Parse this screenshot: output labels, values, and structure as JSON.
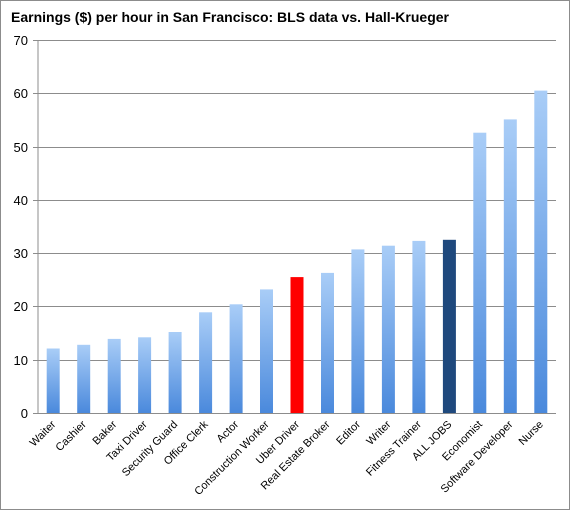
{
  "chart_data": {
    "type": "bar",
    "title": "Earnings ($) per hour in San Francisco: BLS data vs. Hall-Krueger",
    "categories": [
      "Waiter",
      "Cashier",
      "Baker",
      "Taxi Driver",
      "Security Guard",
      "Office Clerk",
      "Actor",
      "Construction Worker",
      "Uber Driver",
      "Real Estate Broker",
      "Editor",
      "Writer",
      "Fitness Trainer",
      "ALL JOBS",
      "Economist",
      "Software Developer",
      "Nurse"
    ],
    "values": [
      12.1,
      12.8,
      13.9,
      14.2,
      15.2,
      18.9,
      20.4,
      23.2,
      25.5,
      26.3,
      30.7,
      31.4,
      32.3,
      32.5,
      52.6,
      55.1,
      60.5
    ],
    "highlight": {
      "Uber Driver": "#ff0000",
      "ALL JOBS": "#1f497d"
    },
    "ylim": [
      0,
      70
    ],
    "yticks": [
      0,
      10,
      20,
      30,
      40,
      50,
      60,
      70
    ],
    "grid": true,
    "legend": "none",
    "colors": {
      "bar_top": "#a9cdf7",
      "bar_bottom": "#4a89dc",
      "grid": "#8c8c8c"
    }
  }
}
